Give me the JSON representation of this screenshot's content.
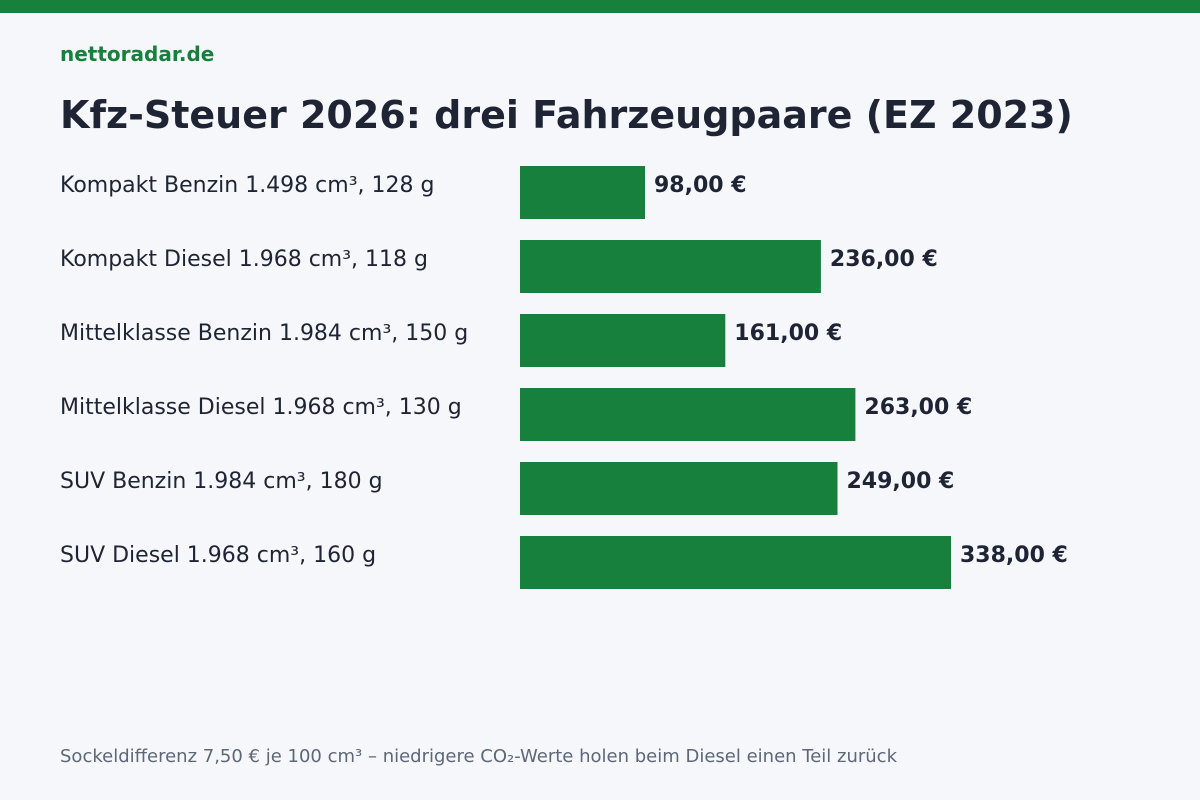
{
  "site": {
    "name": "nettoradar.de"
  },
  "colors": {
    "background": "#f5f7fb",
    "brand": "#16803c",
    "bar": "#16803c",
    "text": "#1e2433",
    "muted": "#5d6778"
  },
  "chart_data": {
    "type": "bar",
    "orientation": "horizontal",
    "title": "Kfz-Steuer 2026: drei Fahrzeugpaare (EZ 2023)",
    "categories": [
      "Kompakt Benzin 1.498 cm³, 128 g",
      "Kompakt Diesel 1.968 cm³, 118 g",
      "Mittelklasse Benzin 1.984 cm³, 150 g",
      "Mittelklasse Diesel 1.968 cm³, 130 g",
      "SUV Benzin 1.984 cm³, 180 g",
      "SUV Diesel 1.968 cm³, 160 g"
    ],
    "values": [
      98.0,
      236.0,
      161.0,
      263.0,
      249.0,
      338.0
    ],
    "value_labels": [
      "98,00 €",
      "236,00 €",
      "161,00 €",
      "263,00 €",
      "249,00 €",
      "338,00 €"
    ],
    "xlim": [
      0,
      338
    ],
    "grid": false,
    "legend": "none"
  },
  "footnote": "Sockeldifferenz 7,50 € je 100 cm³ – niedrigere CO₂-Werte holen beim Diesel einen Teil zurück"
}
